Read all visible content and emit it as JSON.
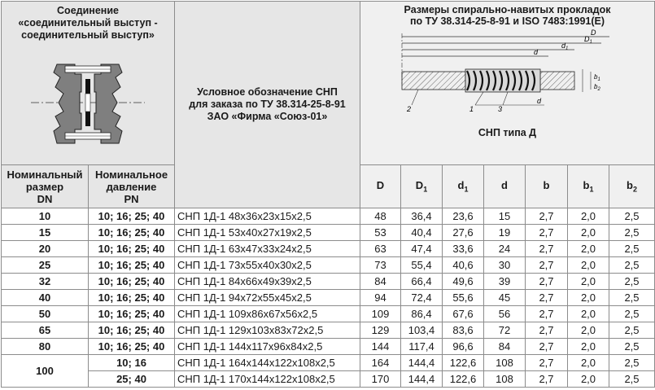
{
  "header": {
    "connection_title": [
      "Соединение",
      "«соединительный выступ -",
      "соединительный выступ»"
    ],
    "sizes_title": [
      "Размеры спирально-навитых прокладок",
      "по ТУ 38.314-25-8-91 и ISO 7483:1991(E)"
    ],
    "designation_title": [
      "Условное обозначение СНП",
      "для заказа по ТУ 38.314-25-8-91",
      "ЗАО «Фирма «Союз-01»"
    ],
    "gasket_caption": "СНП типа Д",
    "dn_header": [
      "Номинальный",
      "размер",
      "DN"
    ],
    "pn_header": [
      "Номинальное",
      "давление",
      "PN"
    ],
    "columns": [
      "D",
      "D",
      "d",
      "d",
      "b",
      "b",
      "b"
    ],
    "column_subs": [
      "",
      "1",
      "1",
      "",
      "",
      "1",
      "2"
    ],
    "drawing_labels": [
      "D",
      "D",
      "d",
      "d",
      "2",
      "1",
      "3",
      "b",
      "b"
    ],
    "drawing_label_subs": [
      "",
      "1",
      "1",
      "",
      "",
      "",
      "",
      "1",
      "2"
    ]
  },
  "rows": [
    {
      "dn": "10",
      "pn": "10; 16; 25; 40",
      "designation": "СНП 1Д-1 48х36х23х15х2,5",
      "D": "48",
      "D1": "36,4",
      "d1": "23,6",
      "d": "15",
      "b": "2,7",
      "b1": "2,0",
      "b2": "2,5"
    },
    {
      "dn": "15",
      "pn": "10; 16; 25; 40",
      "designation": "СНП 1Д-1 53х40х27х19х2,5",
      "D": "53",
      "D1": "40,4",
      "d1": "27,6",
      "d": "19",
      "b": "2,7",
      "b1": "2,0",
      "b2": "2,5"
    },
    {
      "dn": "20",
      "pn": "10; 16; 25; 40",
      "designation": "СНП 1Д-1 63х47х33х24х2,5",
      "D": "63",
      "D1": "47,4",
      "d1": "33,6",
      "d": "24",
      "b": "2,7",
      "b1": "2,0",
      "b2": "2,5"
    },
    {
      "dn": "25",
      "pn": "10; 16; 25; 40",
      "designation": "СНП 1Д-1 73х55х40х30х2,5",
      "D": "73",
      "D1": "55,4",
      "d1": "40,6",
      "d": "30",
      "b": "2,7",
      "b1": "2,0",
      "b2": "2,5"
    },
    {
      "dn": "32",
      "pn": "10; 16; 25; 40",
      "designation": "СНП 1Д-1 84х66х49х39х2,5",
      "D": "84",
      "D1": "66,4",
      "d1": "49,6",
      "d": "39",
      "b": "2,7",
      "b1": "2,0",
      "b2": "2,5"
    },
    {
      "dn": "40",
      "pn": "10; 16; 25; 40",
      "designation": "СНП 1Д-1 94х72х55х45х2,5",
      "D": "94",
      "D1": "72,4",
      "d1": "55,6",
      "d": "45",
      "b": "2,7",
      "b1": "2,0",
      "b2": "2,5"
    },
    {
      "dn": "50",
      "pn": "10; 16; 25; 40",
      "designation": "СНП 1Д-1 109х86х67х56х2,5",
      "D": "109",
      "D1": "86,4",
      "d1": "67,6",
      "d": "56",
      "b": "2,7",
      "b1": "2,0",
      "b2": "2,5"
    },
    {
      "dn": "65",
      "pn": "10; 16; 25; 40",
      "designation": "СНП 1Д-1 129х103х83х72х2,5",
      "D": "129",
      "D1": "103,4",
      "d1": "83,6",
      "d": "72",
      "b": "2,7",
      "b1": "2,0",
      "b2": "2,5"
    },
    {
      "dn": "80",
      "pn": "10; 16; 25; 40",
      "designation": "СНП 1Д-1 144х117х96х84х2,5",
      "D": "144",
      "D1": "117,4",
      "d1": "96,6",
      "d": "84",
      "b": "2,7",
      "b1": "2,0",
      "b2": "2,5"
    }
  ],
  "row100": {
    "dn": "100",
    "sub": [
      {
        "pn": "10; 16",
        "designation": "СНП 1Д-1 164х144х122х108х2,5",
        "D": "164",
        "D1": "144,4",
        "d1": "122,6",
        "d": "108",
        "b": "2,7",
        "b1": "2,0",
        "b2": "2,5"
      },
      {
        "pn": "25; 40",
        "designation": "СНП 1Д-1 170х144х122х108х2,5",
        "D": "170",
        "D1": "144,4",
        "d1": "122,6",
        "d": "108",
        "b": "2,7",
        "b1": "2,0",
        "b2": "2,5"
      }
    ]
  }
}
